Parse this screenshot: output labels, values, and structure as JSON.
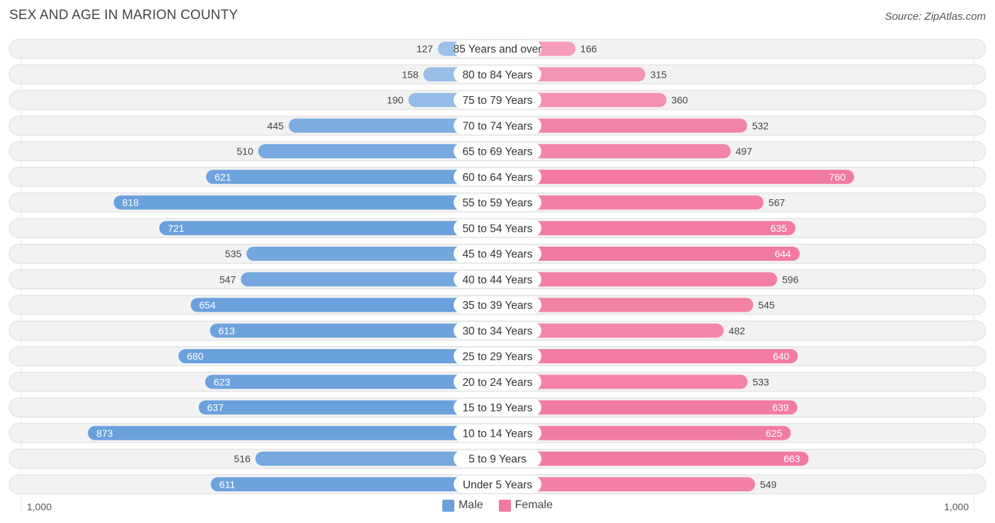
{
  "title": "SEX AND AGE IN MARION COUNTY",
  "source": "Source: ZipAtlas.com",
  "colors": {
    "male_strong": "#6aa0dc",
    "male_light": "#a9c8ec",
    "female_strong": "#f27aa0",
    "female_light": "#f6a9c1",
    "row_bg": "#f2f2f2",
    "row_border": "#dedede"
  },
  "legend": {
    "male": "Male",
    "female": "Female"
  },
  "axis": {
    "left_label": "1,000",
    "right_label": "1,000"
  },
  "chart_data": {
    "type": "bar",
    "orientation": "horizontal-diverging",
    "categories": [
      "85 Years and over",
      "80 to 84 Years",
      "75 to 79 Years",
      "70 to 74 Years",
      "65 to 69 Years",
      "60 to 64 Years",
      "55 to 59 Years",
      "50 to 54 Years",
      "45 to 49 Years",
      "40 to 44 Years",
      "35 to 39 Years",
      "30 to 34 Years",
      "25 to 29 Years",
      "20 to 24 Years",
      "15 to 19 Years",
      "10 to 14 Years",
      "5 to 9 Years",
      "Under 5 Years"
    ],
    "series": [
      {
        "name": "Male",
        "values": [
          127,
          158,
          190,
          445,
          510,
          621,
          818,
          721,
          535,
          547,
          654,
          613,
          680,
          623,
          637,
          873,
          516,
          611
        ]
      },
      {
        "name": "Female",
        "values": [
          166,
          315,
          360,
          532,
          497,
          760,
          567,
          635,
          644,
          596,
          545,
          482,
          640,
          533,
          639,
          625,
          663,
          549
        ]
      }
    ],
    "xlim": [
      -1000,
      1000
    ],
    "legend_position": "bottom-center"
  }
}
